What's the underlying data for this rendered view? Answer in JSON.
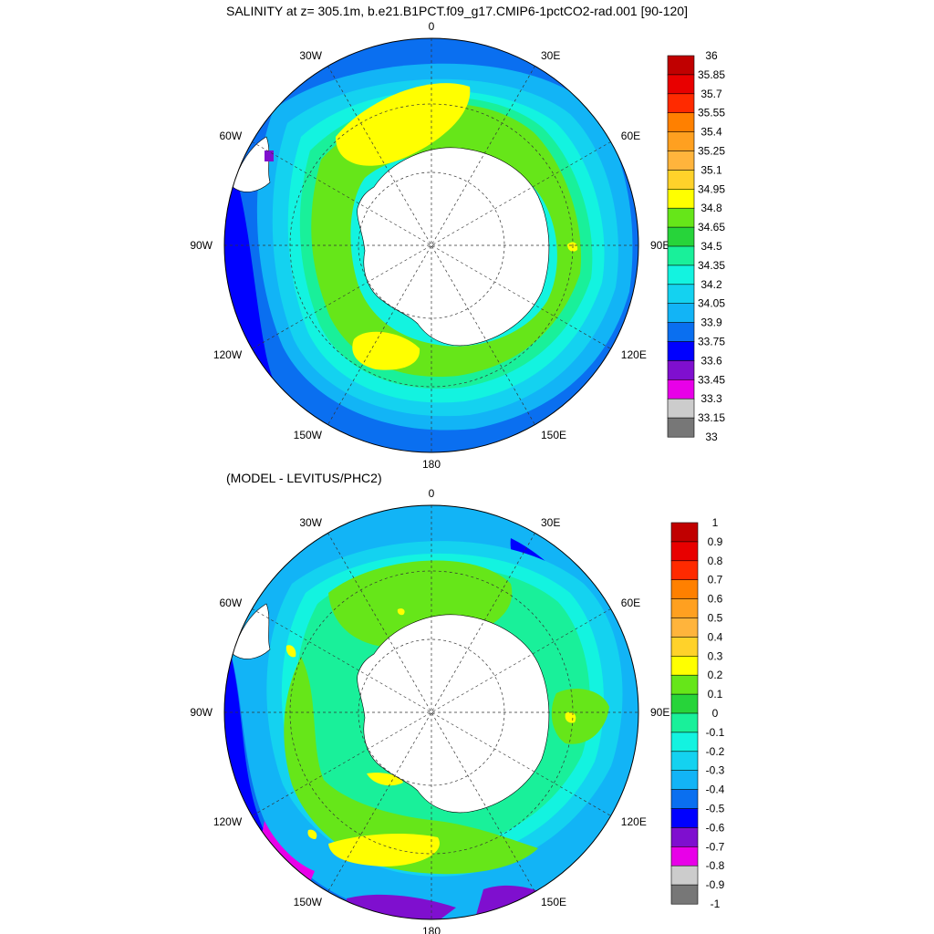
{
  "panels": [
    {
      "title": "SALINITY at z= 305.1m, b.e21.B1PCT.f09_g17.CMIP6-1pctCO2-rad.001 [90-120]",
      "lon_labels": [
        "0",
        "30E",
        "60E",
        "90E",
        "120E",
        "150E",
        "180",
        "150W",
        "120W",
        "90W",
        "60W",
        "30W"
      ],
      "colorbar": {
        "labels": [
          "36",
          "35.85",
          "35.7",
          "35.55",
          "35.4",
          "35.25",
          "35.1",
          "34.95",
          "34.8",
          "34.65",
          "34.5",
          "34.35",
          "34.2",
          "34.05",
          "33.9",
          "33.75",
          "33.6",
          "33.45",
          "33.3",
          "33.15",
          "33"
        ],
        "colors": [
          "#c00000",
          "#e80000",
          "#ff2a00",
          "#ff8000",
          "#ffa020",
          "#ffb43c",
          "#ffd22a",
          "#ffff00",
          "#66e619",
          "#27d43a",
          "#19f09a",
          "#13f3e0",
          "#14d2f0",
          "#12b4f6",
          "#0a6ff0",
          "#0000ff",
          "#7f0fcf",
          "#e800e8",
          "#cccccc",
          "#777777"
        ]
      }
    },
    {
      "title": "(MODEL - LEVITUS/PHC2)",
      "lon_labels": [
        "0",
        "30E",
        "60E",
        "90E",
        "120E",
        "150E",
        "180",
        "150W",
        "120W",
        "90W",
        "60W",
        "30W"
      ],
      "colorbar": {
        "labels": [
          "1",
          "0.9",
          "0.8",
          "0.7",
          "0.6",
          "0.5",
          "0.4",
          "0.3",
          "0.2",
          "0.1",
          "0",
          "-0.1",
          "-0.2",
          "-0.3",
          "-0.4",
          "-0.5",
          "-0.6",
          "-0.7",
          "-0.8",
          "-0.9",
          "-1"
        ],
        "colors": [
          "#c00000",
          "#e80000",
          "#ff2a00",
          "#ff8000",
          "#ffa020",
          "#ffb43c",
          "#ffd22a",
          "#ffff00",
          "#66e619",
          "#27d43a",
          "#19f09a",
          "#13f3e0",
          "#14d2f0",
          "#12b4f6",
          "#0a6ff0",
          "#0000ff",
          "#7f0fcf",
          "#e800e8",
          "#cccccc",
          "#777777"
        ]
      }
    }
  ]
}
